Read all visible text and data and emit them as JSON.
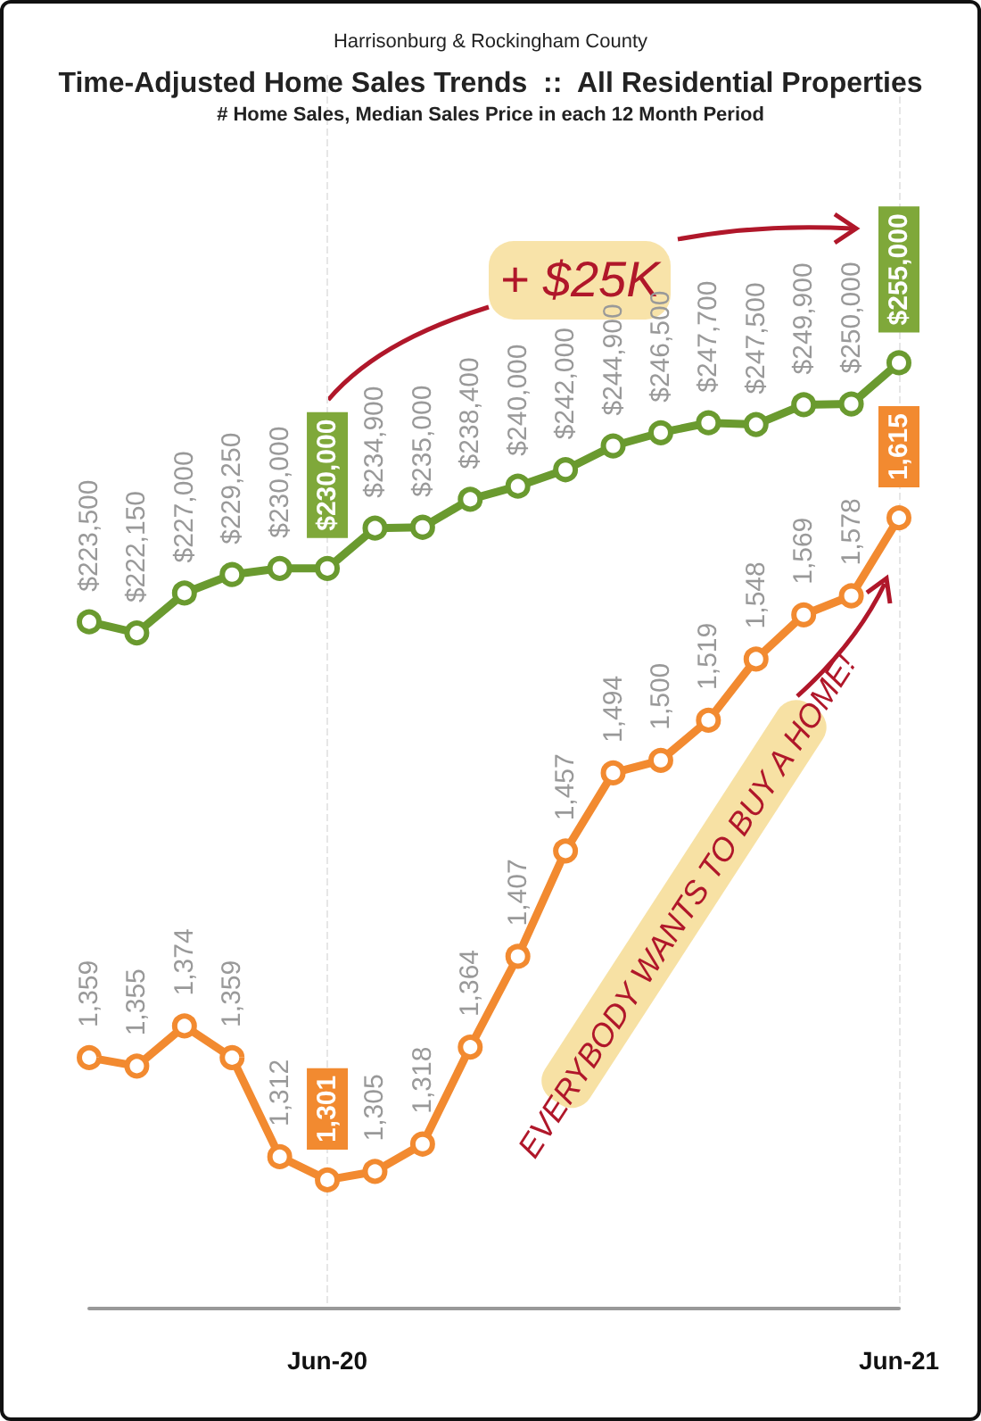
{
  "chart_data": {
    "type": "line",
    "title": "Time-Adjusted Home Sales Trends  ::  All Residential Properties",
    "subtitle": "# Home Sales, Median Sales Price in each 12 Month Period",
    "annotations": [
      "Harrisonburg & Rockingham County",
      "+ $25K",
      "EVERYBODY WANTS TO BUY A HOME!"
    ],
    "categories": [
      null,
      null,
      null,
      null,
      null,
      "Jun-20",
      null,
      null,
      null,
      null,
      null,
      null,
      null,
      null,
      null,
      null,
      null,
      "Jun-21"
    ],
    "series": [
      {
        "color": "#6a9a2f",
        "values": [
          223500,
          222150,
          227000,
          229250,
          230000,
          230000,
          234900,
          235000,
          238400,
          240000,
          242000,
          244900,
          246500,
          247700,
          247500,
          249900,
          250000,
          255000
        ],
        "value_labels": [
          "$223,500",
          "$222,150",
          "$227,000",
          "$229,250",
          "$230,000",
          "$230,000",
          "$234,900",
          "$235,000",
          "$238,400",
          "$240,000",
          "$242,000",
          "$244,900",
          "$246,500",
          "$247,700",
          "$247,500",
          "$249,900",
          "$250,000",
          "$255,000"
        ]
      },
      {
        "color": "#f28a30",
        "axis": "y2",
        "values": [
          1359,
          1355,
          1374,
          1359,
          1312,
          1301,
          1305,
          1318,
          1364,
          1407,
          1457,
          1494,
          1500,
          1519,
          1548,
          1569,
          1578,
          1615
        ],
        "value_labels": [
          "1,359",
          "1,355",
          "1,374",
          "1,359",
          "1,312",
          "1,301",
          "1,305",
          "1,318",
          "1,364",
          "1,407",
          "1,457",
          "1,494",
          "1,500",
          "1,519",
          "1,548",
          "1,569",
          "1,578",
          "1,615"
        ]
      }
    ],
    "ylim": [
      140000,
      290000
    ],
    "y2lim": [
      1240,
      1825
    ],
    "tick_labels": "x",
    "grid": "x",
    "marker": "circle",
    "line_style": "solid"
  }
}
